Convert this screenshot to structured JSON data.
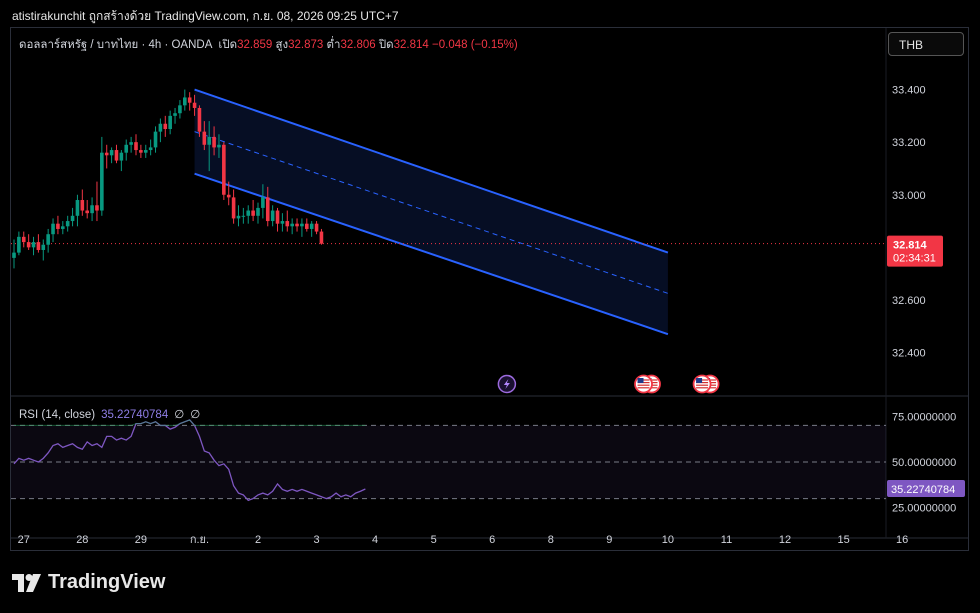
{
  "header": "atistirakunchit ถูกสร้างด้วย TradingView.com, ก.ย. 08, 2026 09:25 UTC+7",
  "currency_button": "THB",
  "legend": {
    "symbol": "ดอลลาร์สหรัฐ / บาทไทย · 4h · OANDA",
    "open_label": "เปิด",
    "open": "32.859",
    "high_label": "สูง",
    "high": "32.873",
    "low_label": "ต่ำ",
    "low": "32.806",
    "close_label": "ปิด",
    "close": "32.814",
    "change": "−0.048 (−0.15%)"
  },
  "price_tag": {
    "price": "32.814",
    "countdown": "02:34:31"
  },
  "rsi_legend": {
    "label": "RSI (14, close)",
    "value": "35.22740784",
    "na1": "∅",
    "na2": "∅"
  },
  "rsi_tag": "35.22740784",
  "logo_text": "TradingView",
  "colors": {
    "up": "#089981",
    "down": "#f23645",
    "channel": "#2962ff",
    "rsi": "#7e57c2",
    "bg": "#000000"
  },
  "chart_data": [
    {
      "type": "candlestick",
      "y_ticks": [
        "33.400",
        "33.200",
        "33.000",
        "32.600",
        "32.400"
      ],
      "y_tick_values": [
        33.4,
        33.2,
        33.0,
        32.6,
        32.4
      ],
      "ylim": [
        32.25,
        33.52
      ],
      "x_ticks": [
        "27",
        "28",
        "29",
        "ก.ย.",
        "2",
        "3",
        "4",
        "5",
        "6",
        "8",
        "9",
        "10",
        "11",
        "12",
        "15",
        "16"
      ],
      "x_tick_index": [
        2,
        14,
        26,
        38,
        50,
        62,
        74,
        86,
        98,
        110,
        122,
        134,
        146,
        158,
        170,
        182
      ],
      "last_price": 32.814,
      "candles": [
        [
          32.76,
          32.83,
          32.72,
          32.78
        ],
        [
          32.78,
          32.86,
          32.77,
          32.84
        ],
        [
          32.84,
          32.86,
          32.8,
          32.82
        ],
        [
          32.82,
          32.85,
          32.79,
          32.8
        ],
        [
          32.8,
          32.84,
          32.77,
          32.82
        ],
        [
          32.82,
          32.85,
          32.78,
          32.79
        ],
        [
          32.79,
          32.83,
          32.75,
          32.81
        ],
        [
          32.81,
          32.87,
          32.78,
          32.85
        ],
        [
          32.85,
          32.91,
          32.82,
          32.89
        ],
        [
          32.89,
          32.92,
          32.85,
          32.87
        ],
        [
          32.87,
          32.9,
          32.85,
          32.88
        ],
        [
          32.88,
          32.92,
          32.86,
          32.9
        ],
        [
          32.9,
          32.95,
          32.88,
          32.92
        ],
        [
          32.92,
          33.0,
          32.88,
          32.98
        ],
        [
          32.98,
          33.02,
          32.92,
          32.94
        ],
        [
          32.94,
          32.98,
          32.91,
          32.93
        ],
        [
          32.93,
          32.99,
          32.9,
          32.96
        ],
        [
          32.96,
          33.05,
          32.9,
          32.94
        ],
        [
          32.94,
          33.22,
          32.92,
          33.16
        ],
        [
          33.16,
          33.19,
          33.1,
          33.15
        ],
        [
          33.15,
          33.18,
          33.12,
          33.17
        ],
        [
          33.17,
          33.19,
          33.12,
          33.13
        ],
        [
          33.13,
          33.17,
          33.09,
          33.16
        ],
        [
          33.16,
          33.21,
          33.13,
          33.19
        ],
        [
          33.19,
          33.22,
          33.16,
          33.2
        ],
        [
          33.2,
          33.23,
          33.15,
          33.17
        ],
        [
          33.17,
          33.19,
          33.14,
          33.16
        ],
        [
          33.16,
          33.19,
          33.14,
          33.17
        ],
        [
          33.17,
          33.21,
          33.15,
          33.18
        ],
        [
          33.18,
          33.26,
          33.16,
          33.24
        ],
        [
          33.24,
          33.29,
          33.2,
          33.27
        ],
        [
          33.27,
          33.3,
          33.22,
          33.25
        ],
        [
          33.25,
          33.32,
          33.23,
          33.3
        ],
        [
          33.3,
          33.33,
          33.27,
          33.31
        ],
        [
          33.31,
          33.36,
          33.29,
          33.34
        ],
        [
          33.34,
          33.4,
          33.32,
          33.37
        ],
        [
          33.37,
          33.39,
          33.32,
          33.35
        ],
        [
          33.35,
          33.38,
          33.3,
          33.33
        ],
        [
          33.33,
          33.34,
          33.22,
          33.24
        ],
        [
          33.24,
          33.28,
          33.17,
          33.19
        ],
        [
          33.19,
          33.28,
          33.09,
          33.22
        ],
        [
          33.22,
          33.26,
          33.15,
          33.18
        ],
        [
          33.18,
          33.23,
          33.14,
          33.19
        ],
        [
          33.19,
          33.2,
          32.98,
          33.0
        ],
        [
          33.0,
          33.05,
          32.96,
          32.99
        ],
        [
          32.99,
          33.02,
          32.89,
          32.91
        ],
        [
          32.91,
          32.96,
          32.88,
          32.92
        ],
        [
          32.92,
          32.95,
          32.89,
          32.92
        ],
        [
          32.92,
          32.96,
          32.89,
          32.94
        ],
        [
          32.94,
          32.98,
          32.9,
          32.92
        ],
        [
          32.92,
          32.97,
          32.89,
          32.95
        ],
        [
          32.95,
          33.04,
          32.91,
          32.99
        ],
        [
          32.99,
          33.03,
          32.88,
          32.9
        ],
        [
          32.9,
          32.96,
          32.88,
          32.94
        ],
        [
          32.94,
          32.95,
          32.86,
          32.89
        ],
        [
          32.89,
          32.93,
          32.86,
          32.9
        ],
        [
          32.9,
          32.94,
          32.86,
          32.88
        ],
        [
          32.88,
          32.91,
          32.85,
          32.89
        ],
        [
          32.89,
          32.91,
          32.86,
          32.88
        ],
        [
          32.88,
          32.91,
          32.84,
          32.89
        ],
        [
          32.89,
          32.91,
          32.86,
          32.87
        ],
        [
          32.87,
          32.9,
          32.84,
          32.89
        ],
        [
          32.89,
          32.9,
          32.85,
          32.86
        ],
        [
          32.86,
          32.87,
          32.81,
          32.814
        ]
      ],
      "channel": {
        "upper": [
          [
            37,
            33.4
          ],
          [
            134,
            32.78
          ]
        ],
        "lower": [
          [
            37,
            33.08
          ],
          [
            134,
            32.47
          ]
        ],
        "mid": [
          [
            37,
            33.24
          ],
          [
            134,
            32.625
          ]
        ]
      },
      "event_markers": [
        {
          "icon": "lightning-icon",
          "index": 101
        },
        {
          "icon": "us-flag-icon",
          "index": 129
        },
        {
          "icon": "us-flag-icon",
          "index": 141
        }
      ]
    },
    {
      "type": "line",
      "title": "RSI (14, close)",
      "y_ticks": [
        "75.00000000",
        "50.00000000",
        "25.00000000"
      ],
      "y_tick_values": [
        75,
        50,
        25
      ],
      "ylim": [
        15,
        85
      ],
      "bands": [
        30,
        50,
        70
      ],
      "values": [
        49,
        52,
        51,
        52,
        51,
        50,
        52,
        55,
        59,
        60,
        58,
        59,
        60,
        58,
        57,
        61,
        59,
        60,
        58,
        64,
        64,
        62,
        63,
        62,
        64,
        71,
        71,
        72,
        71,
        72,
        70,
        70,
        68,
        69,
        71,
        72,
        73,
        70,
        64,
        56,
        55,
        51,
        48,
        49,
        46,
        37,
        33,
        32,
        29,
        30,
        32,
        33,
        32,
        34,
        38,
        35,
        34,
        35,
        34,
        35,
        34,
        33,
        32,
        31,
        30,
        31,
        33,
        31,
        32,
        31,
        33,
        34,
        35.23
      ]
    }
  ]
}
